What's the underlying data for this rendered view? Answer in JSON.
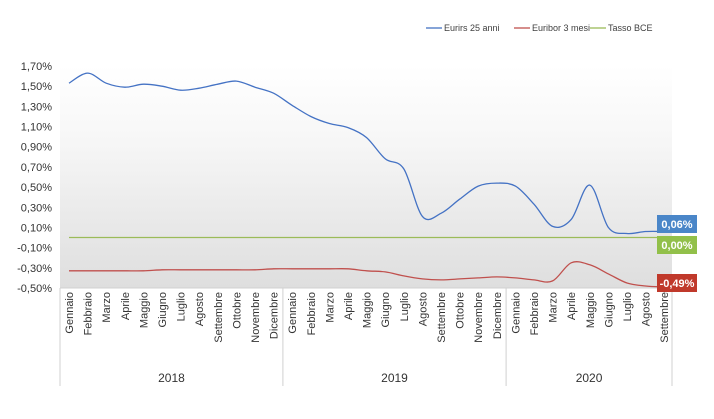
{
  "chart_data": {
    "type": "line",
    "title": "",
    "xlabel": "",
    "ylabel": "",
    "ylim": [
      -0.5,
      1.7
    ],
    "y_ticks": [
      "1,70%",
      "1,50%",
      "1,30%",
      "1,10%",
      "0,90%",
      "0,70%",
      "0,50%",
      "0,30%",
      "0,10%",
      "-0,10%",
      "-0,30%",
      "-0,50%"
    ],
    "y_tick_values": [
      1.7,
      1.5,
      1.3,
      1.1,
      0.9,
      0.7,
      0.5,
      0.3,
      0.1,
      -0.1,
      -0.3,
      -0.5
    ],
    "legend_position": "top-right",
    "categories": [
      "Gennaio",
      "Febbraio",
      "Marzo",
      "Aprile",
      "Maggio",
      "Giugno",
      "Luglio",
      "Agosto",
      "Settembre",
      "Ottobre",
      "Novembre",
      "Dicembre",
      "Gennaio",
      "Febbraio",
      "Marzo",
      "Aprile",
      "Maggio",
      "Giugno",
      "Luglio",
      "Agosto",
      "Settembre",
      "Ottobre",
      "Novembre",
      "Dicembre",
      "Gennaio",
      "Febbraio",
      "Marzo",
      "Aprile",
      "Maggio",
      "Giugno",
      "Luglio",
      "Agosto",
      "Settembre"
    ],
    "groups": [
      {
        "label": "2018",
        "count": 12
      },
      {
        "label": "2019",
        "count": 12
      },
      {
        "label": "2020",
        "count": 9
      }
    ],
    "series": [
      {
        "name": "Eurirs 25 anni",
        "color": "#4472c4",
        "end_label": "0,06%",
        "end_label_color": "#4a86c8",
        "values": [
          1.53,
          1.63,
          1.53,
          1.49,
          1.52,
          1.5,
          1.46,
          1.48,
          1.52,
          1.55,
          1.49,
          1.43,
          1.31,
          1.2,
          1.13,
          1.09,
          0.99,
          0.78,
          0.68,
          0.21,
          0.24,
          0.38,
          0.51,
          0.54,
          0.51,
          0.33,
          0.11,
          0.18,
          0.52,
          0.1,
          0.04,
          0.06,
          0.06
        ]
      },
      {
        "name": "Euribor 3 mesi",
        "color": "#c0504d",
        "end_label": "-0,49%",
        "end_label_color": "#c0392b",
        "values": [
          -0.33,
          -0.33,
          -0.33,
          -0.33,
          -0.33,
          -0.32,
          -0.32,
          -0.32,
          -0.32,
          -0.32,
          -0.32,
          -0.31,
          -0.31,
          -0.31,
          -0.31,
          -0.31,
          -0.33,
          -0.34,
          -0.38,
          -0.41,
          -0.42,
          -0.41,
          -0.4,
          -0.39,
          -0.4,
          -0.42,
          -0.43,
          -0.25,
          -0.27,
          -0.36,
          -0.45,
          -0.48,
          -0.49
        ]
      },
      {
        "name": "Tasso BCE",
        "color": "#9bbb59",
        "end_label": "0,00%",
        "end_label_color": "#92c04a",
        "values": [
          0,
          0,
          0,
          0,
          0,
          0,
          0,
          0,
          0,
          0,
          0,
          0,
          0,
          0,
          0,
          0,
          0,
          0,
          0,
          0,
          0,
          0,
          0,
          0,
          0,
          0,
          0,
          0,
          0,
          0,
          0,
          0,
          0
        ]
      }
    ]
  }
}
